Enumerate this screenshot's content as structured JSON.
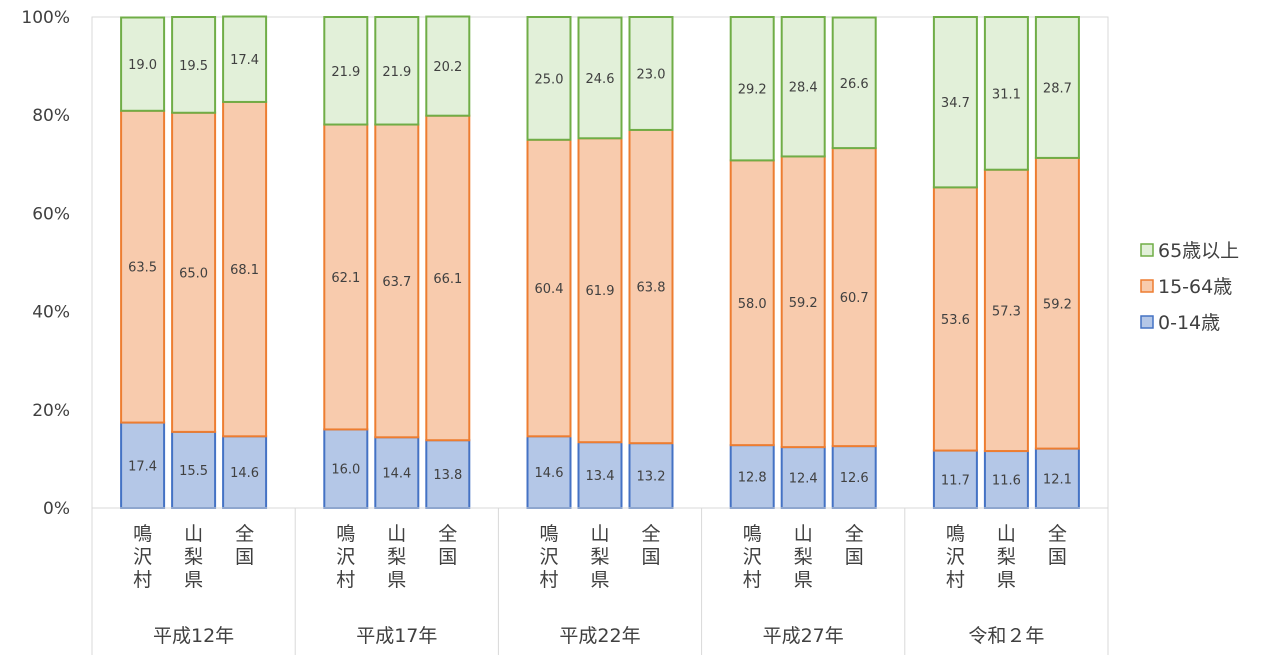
{
  "chart_data": {
    "type": "bar",
    "stacked": true,
    "percent": true,
    "ylim": [
      0,
      100
    ],
    "yticks": [
      "0%",
      "20%",
      "40%",
      "60%",
      "80%",
      "100%"
    ],
    "groups": [
      "平成12年",
      "平成17年",
      "平成22年",
      "平成27年",
      "令和２年"
    ],
    "categories": [
      "鳴沢村",
      "山梨県",
      "全国"
    ],
    "legend_position": "right",
    "series": [
      {
        "name": "0-14歳",
        "fill": "#b4c7e7",
        "stroke": "#4472c4",
        "values": [
          [
            17.4,
            15.5,
            14.6
          ],
          [
            16.0,
            14.4,
            13.8
          ],
          [
            14.6,
            13.4,
            13.2
          ],
          [
            12.8,
            12.4,
            12.6
          ],
          [
            11.7,
            11.6,
            12.1
          ]
        ],
        "labels": [
          [
            "17.4",
            "15.5",
            "14.6"
          ],
          [
            "16.0",
            "14.4",
            "13.8"
          ],
          [
            "14.6",
            "13.4",
            "13.2"
          ],
          [
            "12.8",
            "12.4",
            "12.6"
          ],
          [
            "11.7",
            "11.6",
            "12.1"
          ]
        ]
      },
      {
        "name": "15-64歳",
        "fill": "#f8cbad",
        "stroke": "#ed7d31",
        "values": [
          [
            63.5,
            65.0,
            68.1
          ],
          [
            62.1,
            63.7,
            66.1
          ],
          [
            60.4,
            61.9,
            63.8
          ],
          [
            58.0,
            59.2,
            60.7
          ],
          [
            53.6,
            57.3,
            59.2
          ]
        ],
        "labels": [
          [
            "63.5",
            "65.0",
            "68.1"
          ],
          [
            "62.1",
            "63.7",
            "66.1"
          ],
          [
            "60.4",
            "61.9",
            "63.8"
          ],
          [
            "58.0",
            "59.2",
            "60.7"
          ],
          [
            "53.6",
            "57.3",
            "59.2"
          ]
        ]
      },
      {
        "name": "65歳以上",
        "fill": "#e2f0d9",
        "stroke": "#70ad47",
        "values": [
          [
            19.0,
            19.5,
            17.4
          ],
          [
            21.9,
            21.9,
            20.2
          ],
          [
            25.0,
            24.6,
            23.0
          ],
          [
            29.2,
            28.4,
            26.6
          ],
          [
            34.7,
            31.1,
            28.7
          ]
        ],
        "labels": [
          [
            "19.0",
            "19.5",
            "17.4"
          ],
          [
            "21.9",
            "21.9",
            "20.2"
          ],
          [
            "25.0",
            "24.6",
            "23.0"
          ],
          [
            "29.2",
            "28.4",
            "26.6"
          ],
          [
            "34.7",
            "31.1",
            "28.7"
          ]
        ]
      }
    ],
    "legend_order": [
      "65歳以上",
      "15-64歳",
      "0-14歳"
    ]
  }
}
